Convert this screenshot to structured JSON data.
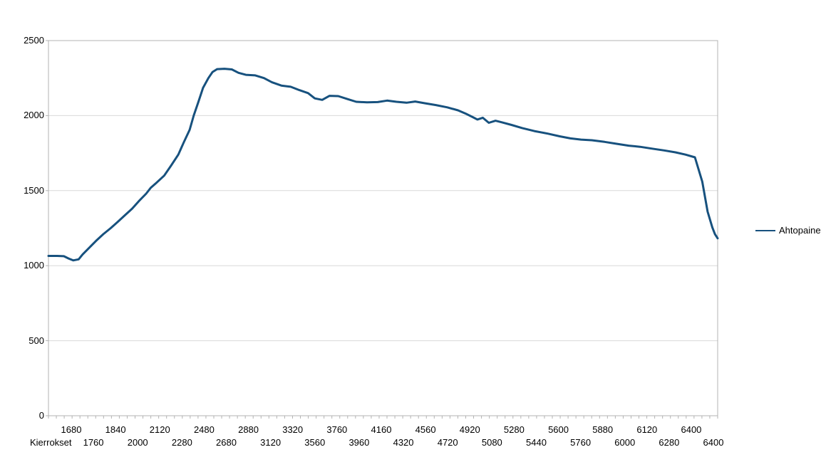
{
  "colors": {
    "series_line": "#17517e",
    "gridline": "#d9d9d9",
    "axis": "#b3b3b3",
    "text": "#000000",
    "background": "#ffffff"
  },
  "legend": {
    "label": "Ahtopaine",
    "position": "right"
  },
  "chart_data": {
    "type": "line",
    "xlabel": "Kierrokset",
    "ylabel": "",
    "ylim": [
      0,
      2500
    ],
    "grid": "horizontal-gridlines-on",
    "y_ticks": [
      0,
      500,
      1000,
      1500,
      2000,
      2500
    ],
    "x_tick_labels_interleaved": [
      "1680",
      "1760",
      "1840",
      "2000",
      "2120",
      "2280",
      "2480",
      "2680",
      "2880",
      "3120",
      "3320",
      "3560",
      "3760",
      "3960",
      "4160",
      "4320",
      "4560",
      "4720",
      "4920",
      "5080",
      "5280",
      "5440",
      "5600",
      "5760",
      "5880",
      "6000",
      "6120",
      "6280",
      "6400",
      "6400"
    ],
    "x_tick_row_note": "labels alternate between upper row (even indexes) and lower row (odd indexes)",
    "legend_entries": [
      "Ahtopaine"
    ],
    "series": [
      {
        "name": "Ahtopaine",
        "color": "#17517e",
        "points_note": "each point is [fraction-across-plot-x, value]; value units match y axis (0-2500)",
        "points": [
          [
            0.0,
            1065
          ],
          [
            0.013,
            1065
          ],
          [
            0.023,
            1063
          ],
          [
            0.03,
            1048
          ],
          [
            0.037,
            1035
          ],
          [
            0.045,
            1042
          ],
          [
            0.051,
            1075
          ],
          [
            0.061,
            1120
          ],
          [
            0.071,
            1165
          ],
          [
            0.082,
            1210
          ],
          [
            0.093,
            1250
          ],
          [
            0.103,
            1290
          ],
          [
            0.114,
            1335
          ],
          [
            0.125,
            1380
          ],
          [
            0.135,
            1430
          ],
          [
            0.146,
            1480
          ],
          [
            0.153,
            1520
          ],
          [
            0.162,
            1555
          ],
          [
            0.173,
            1600
          ],
          [
            0.183,
            1665
          ],
          [
            0.194,
            1740
          ],
          [
            0.202,
            1820
          ],
          [
            0.211,
            1905
          ],
          [
            0.217,
            2000
          ],
          [
            0.224,
            2090
          ],
          [
            0.231,
            2185
          ],
          [
            0.239,
            2250
          ],
          [
            0.245,
            2290
          ],
          [
            0.252,
            2310
          ],
          [
            0.263,
            2312
          ],
          [
            0.274,
            2308
          ],
          [
            0.284,
            2285
          ],
          [
            0.295,
            2272
          ],
          [
            0.309,
            2268
          ],
          [
            0.322,
            2250
          ],
          [
            0.334,
            2222
          ],
          [
            0.348,
            2200
          ],
          [
            0.362,
            2192
          ],
          [
            0.375,
            2170
          ],
          [
            0.388,
            2150
          ],
          [
            0.398,
            2115
          ],
          [
            0.409,
            2105
          ],
          [
            0.42,
            2132
          ],
          [
            0.433,
            2130
          ],
          [
            0.447,
            2110
          ],
          [
            0.46,
            2092
          ],
          [
            0.476,
            2088
          ],
          [
            0.492,
            2090
          ],
          [
            0.506,
            2100
          ],
          [
            0.52,
            2092
          ],
          [
            0.535,
            2086
          ],
          [
            0.548,
            2094
          ],
          [
            0.563,
            2082
          ],
          [
            0.579,
            2070
          ],
          [
            0.596,
            2055
          ],
          [
            0.612,
            2035
          ],
          [
            0.625,
            2010
          ],
          [
            0.634,
            1990
          ],
          [
            0.641,
            1974
          ],
          [
            0.649,
            1986
          ],
          [
            0.658,
            1952
          ],
          [
            0.668,
            1966
          ],
          [
            0.678,
            1955
          ],
          [
            0.692,
            1938
          ],
          [
            0.708,
            1917
          ],
          [
            0.726,
            1897
          ],
          [
            0.746,
            1880
          ],
          [
            0.764,
            1862
          ],
          [
            0.78,
            1848
          ],
          [
            0.796,
            1840
          ],
          [
            0.812,
            1836
          ],
          [
            0.831,
            1825
          ],
          [
            0.849,
            1812
          ],
          [
            0.867,
            1800
          ],
          [
            0.884,
            1792
          ],
          [
            0.902,
            1780
          ],
          [
            0.92,
            1768
          ],
          [
            0.937,
            1755
          ],
          [
            0.952,
            1740
          ],
          [
            0.966,
            1722
          ],
          [
            0.977,
            1560
          ],
          [
            0.985,
            1360
          ],
          [
            0.992,
            1255
          ],
          [
            0.996,
            1210
          ],
          [
            1.0,
            1182
          ]
        ]
      }
    ]
  }
}
